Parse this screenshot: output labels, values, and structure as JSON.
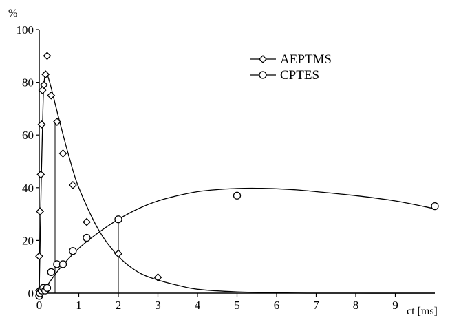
{
  "chart_data": {
    "type": "scatter",
    "ylabel": "%",
    "xlabel": "ct [ms]",
    "xlim": [
      0,
      10
    ],
    "ylim": [
      0,
      100
    ],
    "x_ticks": [
      "0",
      "1",
      "2",
      "3",
      "4",
      "5",
      "6",
      "7",
      "8",
      "9"
    ],
    "y_ticks": [
      "0",
      "20",
      "40",
      "60",
      "80",
      "100"
    ],
    "legend_position": "top-right",
    "series": [
      {
        "name": "AEPTMS",
        "marker": "diamond",
        "points": [
          {
            "x": 0.0,
            "y": 1
          },
          {
            "x": 0.0,
            "y": 14
          },
          {
            "x": 0.02,
            "y": 31
          },
          {
            "x": 0.04,
            "y": 45
          },
          {
            "x": 0.06,
            "y": 64
          },
          {
            "x": 0.08,
            "y": 77
          },
          {
            "x": 0.12,
            "y": 79
          },
          {
            "x": 0.16,
            "y": 83
          },
          {
            "x": 0.2,
            "y": 90
          },
          {
            "x": 0.3,
            "y": 75
          },
          {
            "x": 0.45,
            "y": 65
          },
          {
            "x": 0.6,
            "y": 53
          },
          {
            "x": 0.85,
            "y": 41
          },
          {
            "x": 1.2,
            "y": 27
          },
          {
            "x": 2.0,
            "y": 15
          },
          {
            "x": 3.0,
            "y": 6
          }
        ],
        "fit": [
          {
            "x": 0,
            "y": 0
          },
          {
            "x": 0.05,
            "y": 42
          },
          {
            "x": 0.1,
            "y": 74
          },
          {
            "x": 0.15,
            "y": 83
          },
          {
            "x": 0.2,
            "y": 83
          },
          {
            "x": 0.3,
            "y": 78
          },
          {
            "x": 0.5,
            "y": 66
          },
          {
            "x": 0.75,
            "y": 52
          },
          {
            "x": 1.0,
            "y": 40
          },
          {
            "x": 1.5,
            "y": 24
          },
          {
            "x": 2.0,
            "y": 14
          },
          {
            "x": 2.5,
            "y": 8
          },
          {
            "x": 3.0,
            "y": 5
          },
          {
            "x": 3.5,
            "y": 3
          },
          {
            "x": 4.0,
            "y": 1.5
          },
          {
            "x": 5.0,
            "y": 0.5
          },
          {
            "x": 6.0,
            "y": 0.2
          },
          {
            "x": 7.0,
            "y": 0
          },
          {
            "x": 10.0,
            "y": 0
          }
        ]
      },
      {
        "name": "CPTES",
        "marker": "circle",
        "points": [
          {
            "x": 0.0,
            "y": -1
          },
          {
            "x": 0.02,
            "y": 0
          },
          {
            "x": 0.06,
            "y": 1
          },
          {
            "x": 0.1,
            "y": 2
          },
          {
            "x": 0.15,
            "y": 1
          },
          {
            "x": 0.2,
            "y": 2
          },
          {
            "x": 0.3,
            "y": 8
          },
          {
            "x": 0.45,
            "y": 11
          },
          {
            "x": 0.6,
            "y": 11
          },
          {
            "x": 0.85,
            "y": 16
          },
          {
            "x": 1.2,
            "y": 21
          },
          {
            "x": 2.0,
            "y": 28
          },
          {
            "x": 5.0,
            "y": 37
          },
          {
            "x": 10.0,
            "y": 33
          }
        ],
        "fit": [
          {
            "x": 0,
            "y": 0
          },
          {
            "x": 0.2,
            "y": 3
          },
          {
            "x": 0.5,
            "y": 9
          },
          {
            "x": 1.0,
            "y": 17
          },
          {
            "x": 1.5,
            "y": 23
          },
          {
            "x": 2.0,
            "y": 28
          },
          {
            "x": 2.5,
            "y": 32
          },
          {
            "x": 3.0,
            "y": 35
          },
          {
            "x": 3.5,
            "y": 37
          },
          {
            "x": 4.0,
            "y": 38.5
          },
          {
            "x": 4.5,
            "y": 39.3
          },
          {
            "x": 5.0,
            "y": 39.7
          },
          {
            "x": 5.5,
            "y": 39.8
          },
          {
            "x": 6.0,
            "y": 39.6
          },
          {
            "x": 6.5,
            "y": 39.2
          },
          {
            "x": 7.0,
            "y": 38.5
          },
          {
            "x": 8.0,
            "y": 37
          },
          {
            "x": 9.0,
            "y": 35
          },
          {
            "x": 10.0,
            "y": 32
          }
        ]
      }
    ],
    "guides": [
      {
        "x": 0.4,
        "y_from": 0,
        "y_to": 65
      },
      {
        "x": 2.0,
        "y_from": 0,
        "y_to": 28
      }
    ]
  }
}
